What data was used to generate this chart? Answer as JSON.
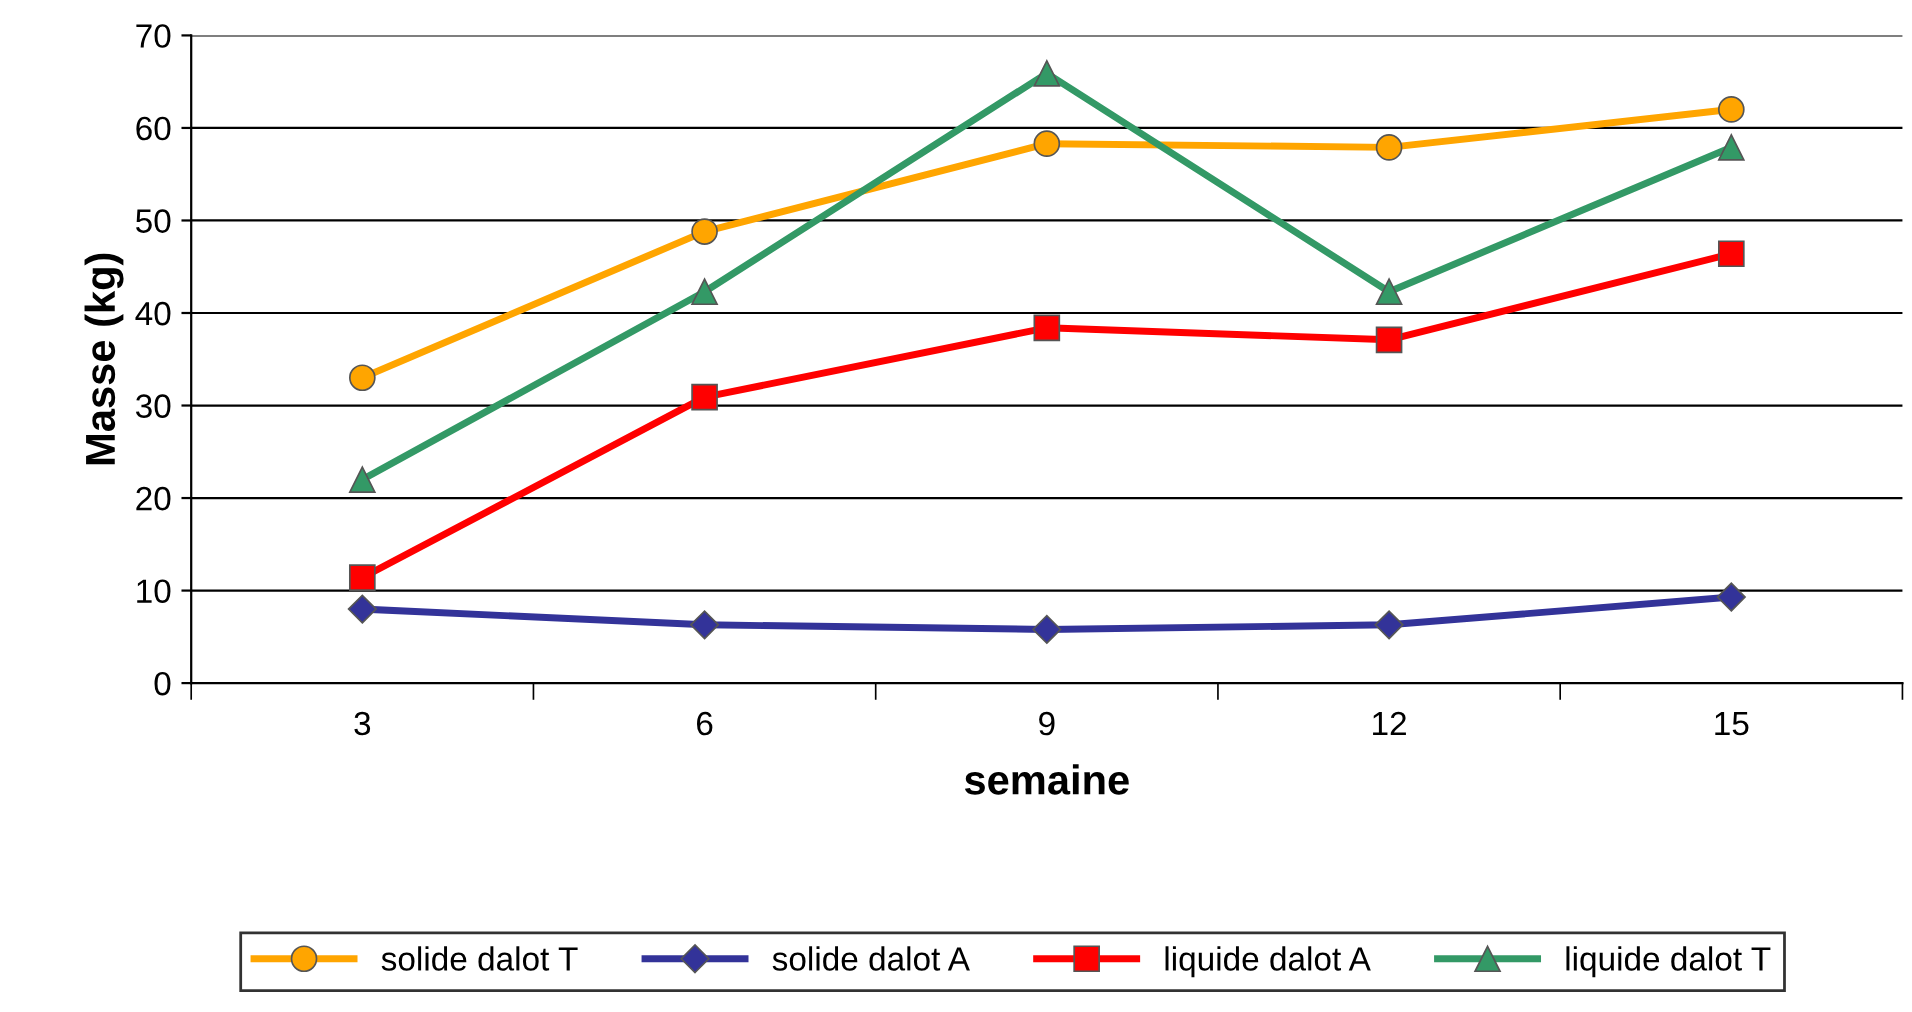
{
  "chart_data": {
    "type": "line",
    "xlabel": "semaine",
    "ylabel": "Masse (kg)",
    "categories": [
      "3",
      "6",
      "9",
      "12",
      "15"
    ],
    "ylim": [
      0,
      70
    ],
    "yticks": [
      0,
      10,
      20,
      30,
      40,
      50,
      60,
      70
    ],
    "grid": "y",
    "legend": "bottom",
    "series": [
      {
        "name": "solide dalot T",
        "color": "#ffa500",
        "marker": "circle",
        "values": [
          33.0,
          48.8,
          58.3,
          57.9,
          62.0
        ]
      },
      {
        "name": "solide dalot A",
        "color": "#333399",
        "marker": "diamond",
        "values": [
          8.0,
          6.3,
          5.8,
          6.3,
          9.3
        ]
      },
      {
        "name": "liquide dalot A",
        "color": "#ff0000",
        "marker": "square",
        "values": [
          11.4,
          30.9,
          38.4,
          37.1,
          46.4
        ]
      },
      {
        "name": "liquide dalot T",
        "color": "#339966",
        "marker": "triangle",
        "values": [
          22.0,
          42.3,
          65.9,
          42.3,
          57.9
        ]
      }
    ]
  }
}
